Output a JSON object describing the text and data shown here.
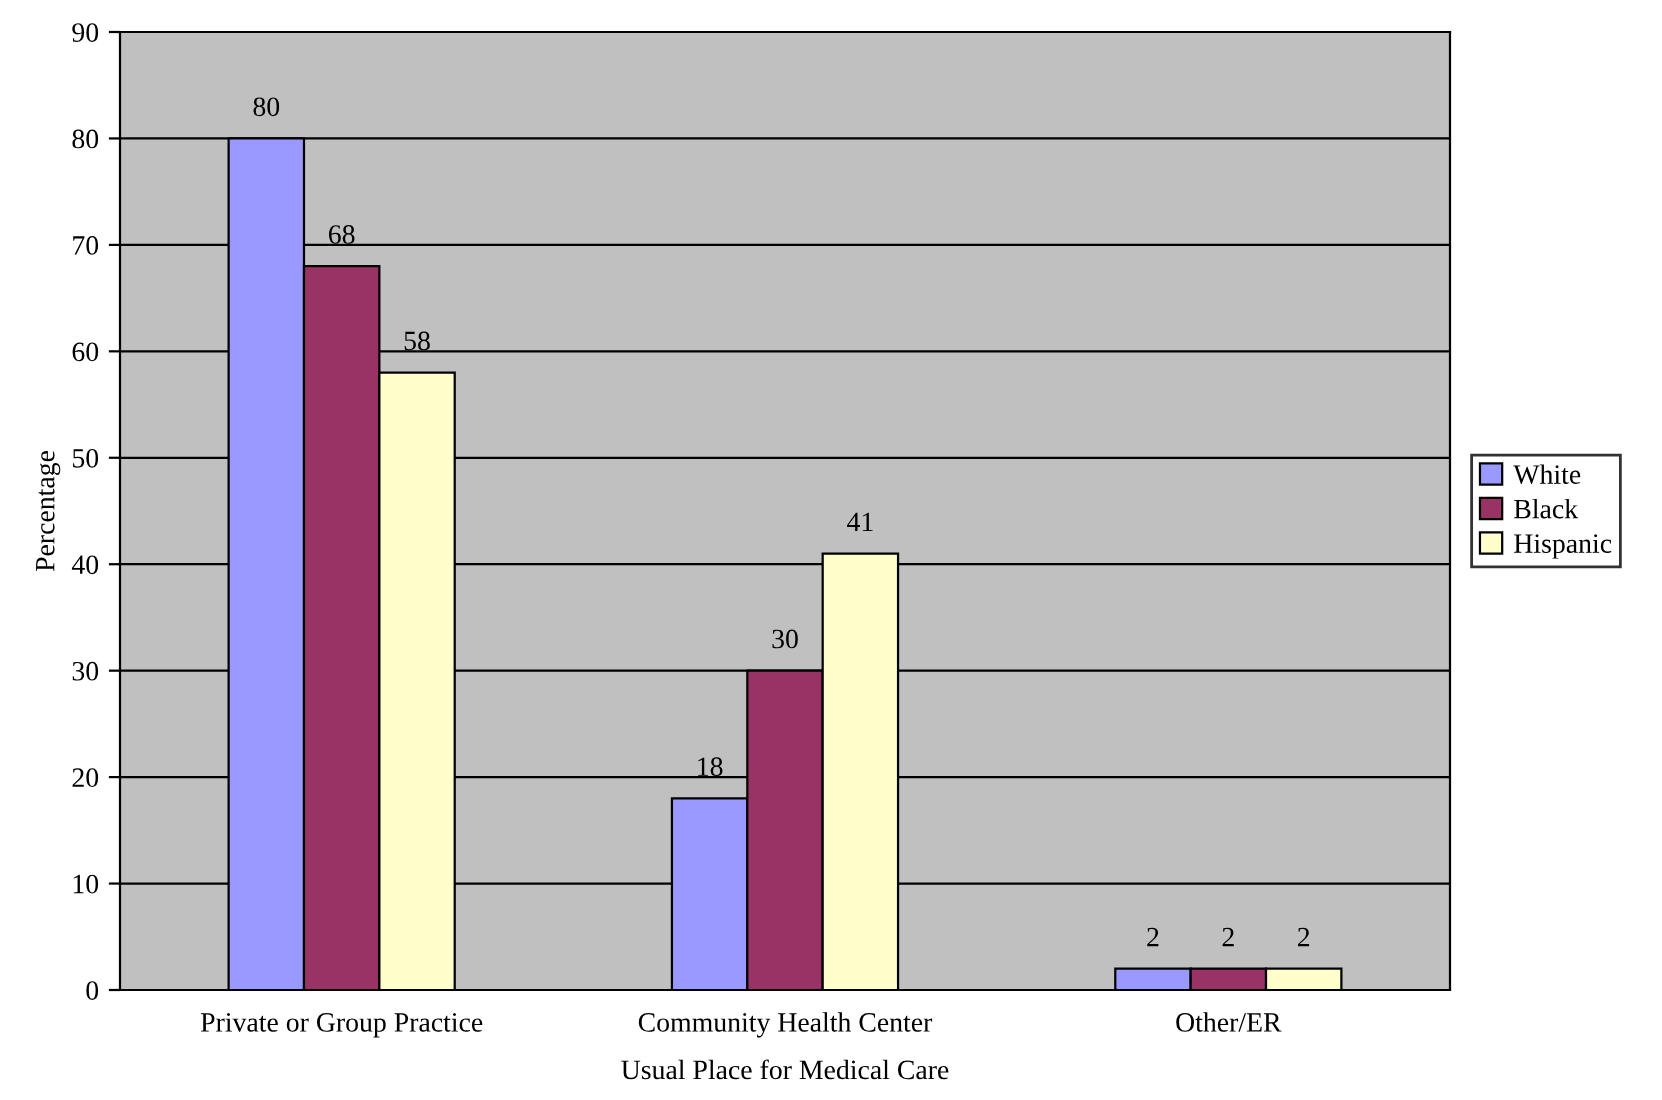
{
  "chart_data": {
    "type": "bar",
    "xlabel": "Usual Place for Medical Care",
    "ylabel": "Percentage",
    "categories": [
      "Private or Group Practice",
      "Community Health Center",
      "Other/ER"
    ],
    "series": [
      {
        "name": "White",
        "color": "#9999ff",
        "values": [
          80,
          18,
          2
        ]
      },
      {
        "name": "Black",
        "color": "#993366",
        "values": [
          68,
          30,
          2
        ]
      },
      {
        "name": "Hispanic",
        "color": "#ffffcc",
        "values": [
          58,
          41,
          2
        ]
      }
    ],
    "ylim": [
      0,
      90
    ],
    "yticks": [
      0,
      10,
      20,
      30,
      40,
      50,
      60,
      70,
      80,
      90
    ],
    "grid": "y",
    "legend": "right",
    "data_labels": true
  }
}
